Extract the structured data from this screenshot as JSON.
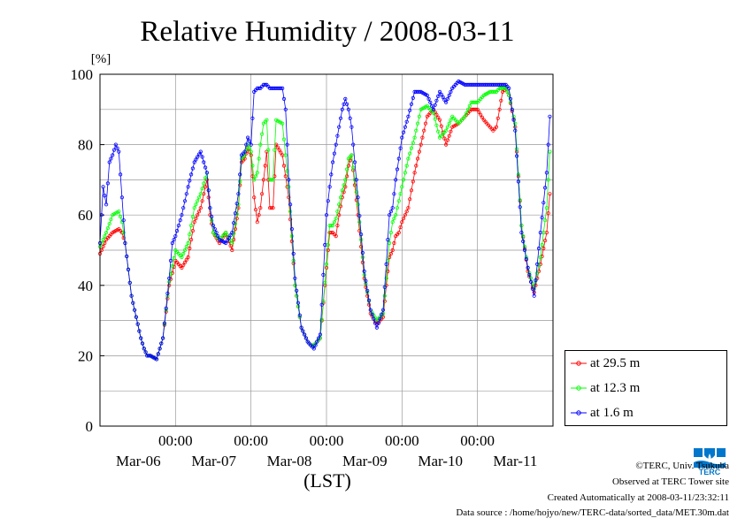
{
  "chart_data": {
    "type": "line",
    "title": "Relative Humidity / 2008-03-11",
    "ylabel": "[%]",
    "xlabel": "(LST)",
    "ylim": [
      0,
      100
    ],
    "yticks": [
      0,
      20,
      40,
      60,
      80,
      100
    ],
    "xlim": [
      0,
      144
    ],
    "xticks": [
      {
        "x": 24,
        "time": "00:00",
        "date": "Mar-06"
      },
      {
        "x": 48,
        "time": "00:00",
        "date": "Mar-07"
      },
      {
        "x": 72,
        "time": "00:00",
        "date": "Mar-08"
      },
      {
        "x": 96,
        "time": "00:00",
        "date": "Mar-09"
      },
      {
        "x": 120,
        "time": "00:00",
        "date": "Mar-10"
      },
      {
        "date_only": true,
        "x": 132,
        "date": "Mar-11"
      }
    ],
    "grid": true,
    "legend_position": "bottom-right",
    "series": [
      {
        "name": "at 29.5 m",
        "color": "#ff0000",
        "x": [
          0,
          2,
          4,
          6,
          7,
          8,
          10,
          12,
          13,
          14,
          15,
          16,
          18,
          20,
          22,
          24,
          26,
          28,
          30,
          32,
          34,
          35,
          36,
          38,
          40,
          42,
          44,
          45,
          46,
          47,
          48,
          49,
          50,
          51,
          52,
          53,
          54,
          55,
          56,
          58,
          60,
          62,
          64,
          66,
          67,
          68,
          70,
          72,
          73,
          74,
          75,
          76,
          77,
          78,
          79,
          80,
          82,
          84,
          86,
          88,
          90,
          91,
          92,
          93,
          94,
          95,
          96,
          98,
          100,
          102,
          104,
          106,
          108,
          110,
          112,
          114,
          116,
          118,
          120,
          122,
          124,
          125,
          126,
          127,
          128,
          129,
          130,
          132,
          134,
          136,
          138,
          140,
          142,
          143
        ],
        "y": [
          49,
          53,
          55,
          56,
          55,
          52,
          37,
          29,
          25,
          22,
          20,
          20,
          19,
          25,
          40,
          47,
          45,
          48,
          58,
          62,
          70,
          60,
          55,
          52,
          55,
          50,
          62,
          75,
          76,
          79,
          77,
          65,
          58,
          62,
          70,
          78,
          62,
          62,
          80,
          77,
          65,
          40,
          28,
          24,
          23,
          23,
          25,
          45,
          55,
          55,
          54,
          60,
          65,
          68,
          74,
          77,
          60,
          42,
          32,
          29,
          31,
          40,
          48,
          50,
          54,
          55,
          58,
          62,
          72,
          80,
          88,
          90,
          87,
          80,
          85,
          86,
          88,
          90,
          90,
          87,
          85,
          84,
          85,
          90,
          95,
          96,
          94,
          85,
          57,
          44,
          38,
          46,
          55,
          66
        ]
      },
      {
        "name": "at 12.3 m",
        "color": "#00ff00",
        "x": [
          0,
          2,
          4,
          6,
          7,
          8,
          10,
          12,
          13,
          14,
          15,
          16,
          18,
          20,
          22,
          24,
          26,
          28,
          30,
          32,
          34,
          35,
          36,
          38,
          40,
          42,
          44,
          45,
          46,
          47,
          48,
          49,
          50,
          51,
          52,
          53,
          54,
          55,
          56,
          58,
          60,
          62,
          64,
          66,
          67,
          68,
          70,
          72,
          73,
          74,
          75,
          76,
          77,
          78,
          79,
          80,
          82,
          84,
          86,
          88,
          90,
          91,
          92,
          93,
          94,
          95,
          96,
          98,
          100,
          102,
          104,
          106,
          108,
          110,
          112,
          114,
          116,
          118,
          120,
          122,
          124,
          125,
          126,
          127,
          128,
          129,
          130,
          132,
          134,
          136,
          138,
          140,
          142,
          143
        ],
        "y": [
          51,
          55,
          60,
          61,
          58,
          52,
          37,
          29,
          25,
          22,
          20,
          20,
          19,
          25,
          41,
          50,
          48,
          52,
          62,
          66,
          72,
          62,
          55,
          53,
          55,
          52,
          63,
          76,
          77,
          80,
          78,
          70,
          72,
          80,
          86,
          87,
          70,
          70,
          87,
          86,
          68,
          40,
          28,
          24,
          23,
          23,
          25,
          46,
          57,
          57,
          59,
          63,
          67,
          70,
          76,
          77,
          63,
          43,
          33,
          30,
          32,
          42,
          52,
          58,
          60,
          64,
          68,
          76,
          82,
          90,
          91,
          89,
          82,
          84,
          88,
          86,
          88,
          92,
          92,
          94,
          95,
          95,
          95,
          96,
          96,
          96,
          94,
          86,
          57,
          45,
          39,
          48,
          62,
          78
        ]
      },
      {
        "name": "at 1.6 m",
        "color": "#0000ff",
        "x": [
          0,
          1,
          2,
          3,
          4,
          5,
          6,
          7,
          8,
          10,
          12,
          13,
          14,
          15,
          16,
          18,
          20,
          22,
          23,
          24,
          26,
          28,
          30,
          32,
          34,
          35,
          36,
          38,
          40,
          42,
          44,
          45,
          46,
          47,
          48,
          49,
          50,
          51,
          52,
          53,
          54,
          55,
          56,
          57,
          58,
          59,
          60,
          62,
          64,
          66,
          67,
          68,
          70,
          72,
          73,
          74,
          75,
          76,
          77,
          78,
          79,
          80,
          82,
          84,
          86,
          88,
          90,
          91,
          92,
          93,
          94,
          95,
          96,
          98,
          100,
          102,
          104,
          106,
          108,
          110,
          112,
          114,
          116,
          118,
          120,
          122,
          124,
          125,
          126,
          127,
          128,
          129,
          130,
          132,
          134,
          136,
          138,
          140,
          142,
          143
        ],
        "y": [
          52,
          68,
          63,
          75,
          77,
          80,
          78,
          65,
          52,
          37,
          29,
          25,
          22,
          20,
          20,
          19,
          25,
          42,
          52,
          54,
          60,
          68,
          75,
          78,
          72,
          62,
          57,
          53,
          52,
          55,
          66,
          77,
          78,
          82,
          80,
          95,
          96,
          96,
          97,
          97,
          96,
          96,
          96,
          96,
          96,
          90,
          70,
          42,
          28,
          24,
          23,
          22,
          26,
          60,
          68,
          75,
          80,
          85,
          90,
          93,
          90,
          85,
          65,
          44,
          33,
          28,
          33,
          46,
          60,
          62,
          70,
          76,
          82,
          88,
          95,
          95,
          94,
          90,
          95,
          92,
          96,
          98,
          97,
          97,
          97,
          97,
          97,
          97,
          97,
          97,
          97,
          97,
          96,
          84,
          55,
          45,
          37,
          55,
          72,
          88
        ]
      }
    ]
  },
  "legend": {
    "items": [
      {
        "label": "at 29.5 m",
        "color": "#ff0000"
      },
      {
        "label": "at 12.3 m",
        "color": "#00ff00"
      },
      {
        "label": "at 1.6 m",
        "color": "#0000ff"
      }
    ]
  },
  "footer": {
    "copyright": "©TERC, Univ. Tsukuba",
    "observed": "Observed at TERC Tower site",
    "created": "Created Automatically at 2008-03-11/23:32:11",
    "source": "Data source : /home/hojyo/new/TERC-data/sorted_data/MET.30m.dat"
  },
  "logo": {
    "text": "TERC",
    "color": "#0077cc"
  }
}
